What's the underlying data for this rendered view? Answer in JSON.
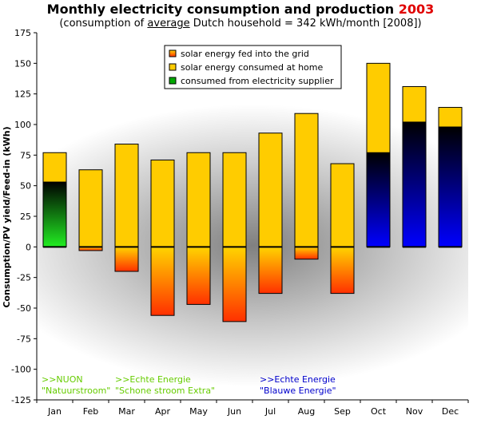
{
  "title": {
    "main": "Monthly electricity consumption and production",
    "year": "2003"
  },
  "subtitle": {
    "before": "(consumption of",
    "underlined": "average",
    "after": "Dutch household = 342 kWh/month [2008])"
  },
  "colors": {
    "fed_top": "#ffd400",
    "fed_bottom": "#ff3000",
    "consumed_home": "#ffcc00",
    "supplier_green": "#22ee22",
    "supplier_blue": "#0000ff",
    "supplier_legend": "#00aa00",
    "green_label": "#66cc00",
    "blue_label": "#0000cc"
  },
  "chart_data": {
    "type": "bar",
    "ylabel": "Consumption/PV yield/Feed-in (kWh)",
    "ylim": [
      -125,
      175
    ],
    "yticks": [
      175,
      150,
      125,
      100,
      75,
      50,
      25,
      0,
      -25,
      -50,
      -75,
      -100,
      -125
    ],
    "categories": [
      "Jan",
      "Feb",
      "Mar",
      "Apr",
      "May",
      "Jun",
      "Jul",
      "Aug",
      "Sep",
      "Oct",
      "Nov",
      "Dec"
    ],
    "series": [
      {
        "name": "solar energy fed into the grid",
        "values": [
          0,
          -3,
          -20,
          -56,
          -47,
          -61,
          -38,
          -10,
          -38,
          0,
          0,
          0
        ]
      },
      {
        "name": "solar energy consumed at home",
        "values": [
          24,
          63,
          84,
          71,
          77,
          77,
          93,
          109,
          68,
          73,
          29,
          16
        ]
      },
      {
        "name": "consumed from electricity supplier",
        "values": [
          53,
          0,
          0,
          0,
          0,
          0,
          0,
          0,
          0,
          77,
          102,
          98
        ]
      }
    ],
    "supplier_color_by_month": [
      "green",
      "",
      "",
      "",
      "",
      "",
      "",
      "",
      "",
      "blue",
      "blue",
      "blue"
    ],
    "legend_position": "top-center",
    "grid": false
  },
  "annotations": [
    {
      "line1": ">>NUON",
      "line2": "\"Natuurstroom\"",
      "color": "green"
    },
    {
      "line1": ">>Echte Energie",
      "line2": "\"Schone stroom Extra\"",
      "color": "green"
    },
    {
      "line1": ">>Echte Energie",
      "line2": "\"Blauwe Energie\"",
      "color": "blue"
    }
  ]
}
